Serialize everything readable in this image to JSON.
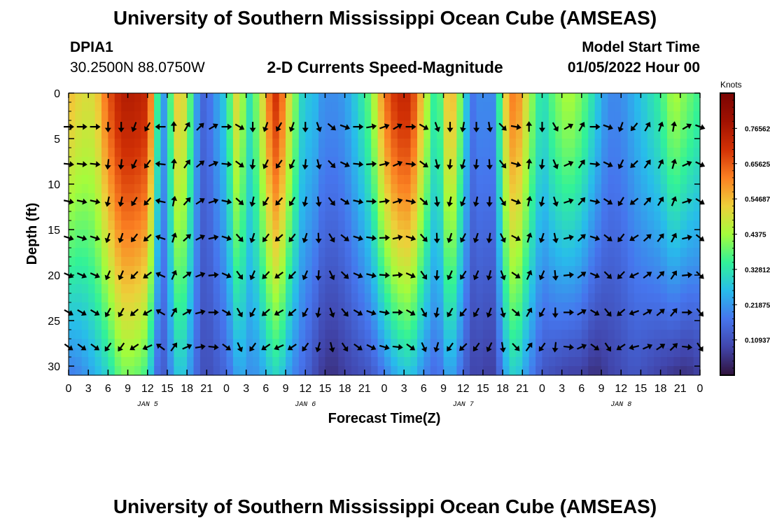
{
  "header": {
    "title": "University of Southern Mississippi Ocean Cube (AMSEAS)",
    "station_id": "DPIA1",
    "station_coords": "30.2500N  88.0750W",
    "plot_title": "2-D Currents Speed-Magnitude",
    "model_start_label": "Model Start Time",
    "model_start_value": "01/05/2022 Hour 00"
  },
  "footer": {
    "title": "University of Southern Mississippi Ocean Cube (AMSEAS)"
  },
  "chart_data": {
    "type": "heatmap",
    "title": "2-D Currents Speed-Magnitude",
    "xlabel": "Forecast Time(Z)",
    "ylabel": "Depth (ft)",
    "x_tick_labels": [
      "0",
      "3",
      "6",
      "9",
      "12",
      "15",
      "18",
      "21",
      "0",
      "3",
      "6",
      "9",
      "12",
      "15",
      "18",
      "21",
      "0",
      "3",
      "6",
      "9",
      "12",
      "15",
      "18",
      "21",
      "0",
      "3",
      "6",
      "9",
      "12",
      "15",
      "18",
      "21",
      "0"
    ],
    "x_range_hours": [
      0,
      96
    ],
    "date_labels": [
      {
        "label": "JAN 5",
        "hour": 12
      },
      {
        "label": "JAN 6",
        "hour": 36
      },
      {
        "label": "JAN 7",
        "hour": 60
      },
      {
        "label": "JAN 8",
        "hour": 84
      }
    ],
    "y_ticks": [
      0,
      5,
      10,
      15,
      20,
      25,
      30
    ],
    "ylim": [
      0,
      31
    ],
    "y_inverted": true,
    "colorbar": {
      "unit": "Knots",
      "labels": [
        "0.765625",
        "0.65625",
        "0.546875",
        "0.4375",
        "0.328125",
        "0.21875",
        "0.109375"
      ],
      "range": [
        0,
        0.875
      ]
    },
    "speed_profile_hours": [
      0,
      2,
      4,
      6,
      7,
      8,
      10,
      12,
      13,
      14,
      15,
      16,
      17,
      18,
      20,
      21,
      22,
      24,
      25,
      26,
      27,
      28,
      30,
      31,
      32,
      33,
      34,
      36,
      37,
      38,
      40,
      42,
      44,
      46,
      48,
      50,
      52,
      54,
      56,
      58,
      60,
      61,
      62,
      63,
      64,
      65,
      66,
      67,
      68,
      69,
      70,
      72,
      74,
      76,
      78,
      79,
      80,
      81,
      82,
      84,
      86,
      88,
      90,
      92,
      94,
      96
    ],
    "speed_profile_surface": [
      0.55,
      0.5,
      0.5,
      0.65,
      0.7,
      0.75,
      0.75,
      0.72,
      0.5,
      0.2,
      0.25,
      0.5,
      0.55,
      0.45,
      0.15,
      0.15,
      0.2,
      0.3,
      0.45,
      0.55,
      0.3,
      0.35,
      0.55,
      0.7,
      0.7,
      0.55,
      0.45,
      0.25,
      0.3,
      0.22,
      0.2,
      0.22,
      0.3,
      0.4,
      0.62,
      0.72,
      0.72,
      0.5,
      0.3,
      0.6,
      0.35,
      0.2,
      0.15,
      0.25,
      0.15,
      0.25,
      0.45,
      0.6,
      0.62,
      0.55,
      0.45,
      0.3,
      0.4,
      0.45,
      0.4,
      0.35,
      0.3,
      0.25,
      0.2,
      0.2,
      0.25,
      0.3,
      0.35,
      0.45,
      0.4,
      0.35
    ],
    "speed_profile_bottom": [
      0.18,
      0.2,
      0.25,
      0.3,
      0.35,
      0.4,
      0.4,
      0.35,
      0.2,
      0.12,
      0.15,
      0.25,
      0.3,
      0.25,
      0.12,
      0.1,
      0.12,
      0.15,
      0.2,
      0.25,
      0.22,
      0.2,
      0.25,
      0.3,
      0.3,
      0.25,
      0.2,
      0.15,
      0.12,
      0.08,
      0.05,
      0.08,
      0.1,
      0.12,
      0.18,
      0.25,
      0.28,
      0.2,
      0.15,
      0.25,
      0.15,
      0.1,
      0.08,
      0.1,
      0.06,
      0.1,
      0.2,
      0.28,
      0.3,
      0.25,
      0.2,
      0.12,
      0.1,
      0.08,
      0.08,
      0.06,
      0.05,
      0.06,
      0.08,
      0.1,
      0.12,
      0.1,
      0.08,
      0.06,
      0.05,
      0.08
    ],
    "arrow_depths_ft": [
      3.7,
      7.8,
      11.9,
      15.9,
      20.0,
      24.1,
      27.9
    ],
    "arrow_hours": [
      0,
      2,
      4,
      6,
      8,
      10,
      12,
      14,
      16,
      18,
      20,
      22,
      24,
      26,
      28,
      30,
      32,
      34,
      36,
      38,
      40,
      42,
      44,
      46,
      48,
      50,
      52,
      54,
      56,
      58,
      60,
      62,
      64,
      66,
      68,
      70,
      72,
      74,
      76,
      78,
      80,
      82,
      84,
      86,
      88,
      90,
      92,
      94,
      96
    ],
    "arrow_direction_deg": [
      90,
      90,
      90,
      180,
      180,
      200,
      210,
      270,
      0,
      30,
      45,
      60,
      90,
      120,
      180,
      200,
      210,
      200,
      180,
      160,
      130,
      110,
      90,
      80,
      70,
      60,
      90,
      120,
      160,
      180,
      190,
      180,
      170,
      135,
      100,
      0,
      180,
      150,
      60,
      30,
      90,
      110,
      200,
      220,
      30,
      20,
      10,
      60,
      110
    ]
  }
}
